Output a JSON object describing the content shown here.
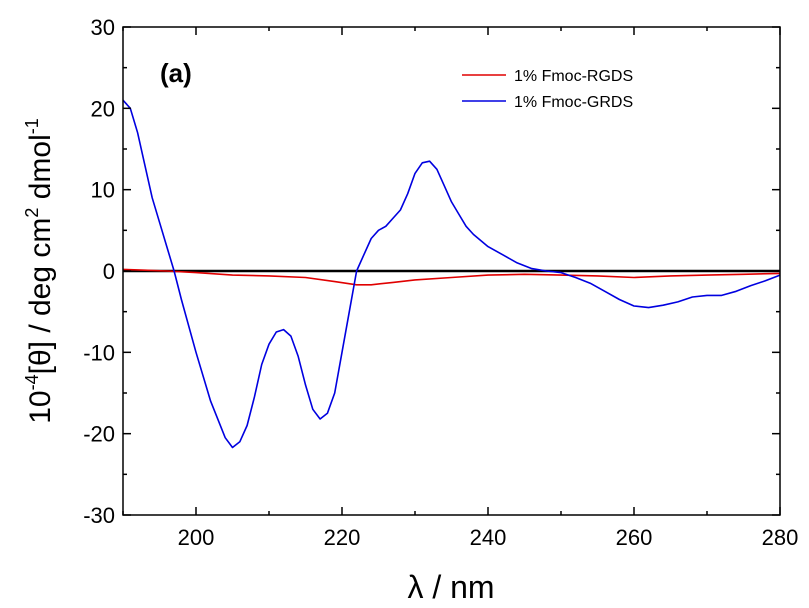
{
  "chart_data": {
    "type": "line",
    "panel_label": "(a)",
    "xlabel": "λ / nm",
    "ylabel": {
      "prefix": "10",
      "prefix_sup": "-4",
      "mid": "[θ] / deg cm",
      "mid_sup": "2",
      "suffix": " dmol",
      "suffix_sup": "-1"
    },
    "xlim": [
      190,
      280
    ],
    "ylim": [
      -30,
      30
    ],
    "xticks": [
      200,
      220,
      240,
      260,
      280
    ],
    "yticks": [
      -30,
      -20,
      -10,
      0,
      10,
      20,
      30
    ],
    "zero_line": true,
    "grid": false,
    "legend_position": "top-right",
    "series": [
      {
        "name": "1% Fmoc-RGDS",
        "color": "#e00000",
        "x": [
          190,
          193,
          196,
          200,
          205,
          210,
          215,
          219,
          222,
          224,
          227,
          230,
          235,
          240,
          245,
          250,
          255,
          260,
          265,
          270,
          275,
          280
        ],
        "y": [
          0.2,
          0.1,
          0.0,
          -0.2,
          -0.5,
          -0.6,
          -0.8,
          -1.3,
          -1.7,
          -1.7,
          -1.4,
          -1.1,
          -0.8,
          -0.5,
          -0.4,
          -0.5,
          -0.6,
          -0.8,
          -0.6,
          -0.5,
          -0.4,
          -0.3
        ]
      },
      {
        "name": "1% Fmoc-GRDS",
        "color": "#0000e0",
        "x": [
          190,
          191,
          192,
          193,
          194,
          195,
          196,
          197,
          198,
          200,
          202,
          204,
          205,
          206,
          207,
          208,
          209,
          210,
          211,
          212,
          213,
          214,
          215,
          216,
          217,
          218,
          219,
          220,
          221,
          222,
          223,
          224,
          225,
          226,
          227,
          228,
          229,
          230,
          231,
          232,
          233,
          234,
          235,
          236,
          237,
          238,
          240,
          242,
          244,
          246,
          248,
          250,
          252,
          254,
          256,
          258,
          260,
          262,
          264,
          266,
          268,
          270,
          272,
          274,
          276,
          278,
          280
        ],
        "y": [
          21,
          20,
          17,
          13,
          9,
          6,
          3,
          0,
          -3.5,
          -10,
          -16,
          -20.5,
          -21.7,
          -21,
          -19,
          -15.5,
          -11.5,
          -9,
          -7.5,
          -7.2,
          -8,
          -10.5,
          -14,
          -17,
          -18.2,
          -17.5,
          -15,
          -10,
          -5,
          0,
          2,
          4,
          5,
          5.5,
          6.5,
          7.5,
          9.5,
          12,
          13.3,
          13.5,
          12.5,
          10.5,
          8.5,
          7,
          5.5,
          4.5,
          3,
          2,
          1,
          0.3,
          0,
          -0.2,
          -0.8,
          -1.5,
          -2.5,
          -3.5,
          -4.3,
          -4.5,
          -4.2,
          -3.8,
          -3.2,
          -3,
          -3,
          -2.5,
          -1.8,
          -1.2,
          -0.5
        ]
      }
    ]
  }
}
